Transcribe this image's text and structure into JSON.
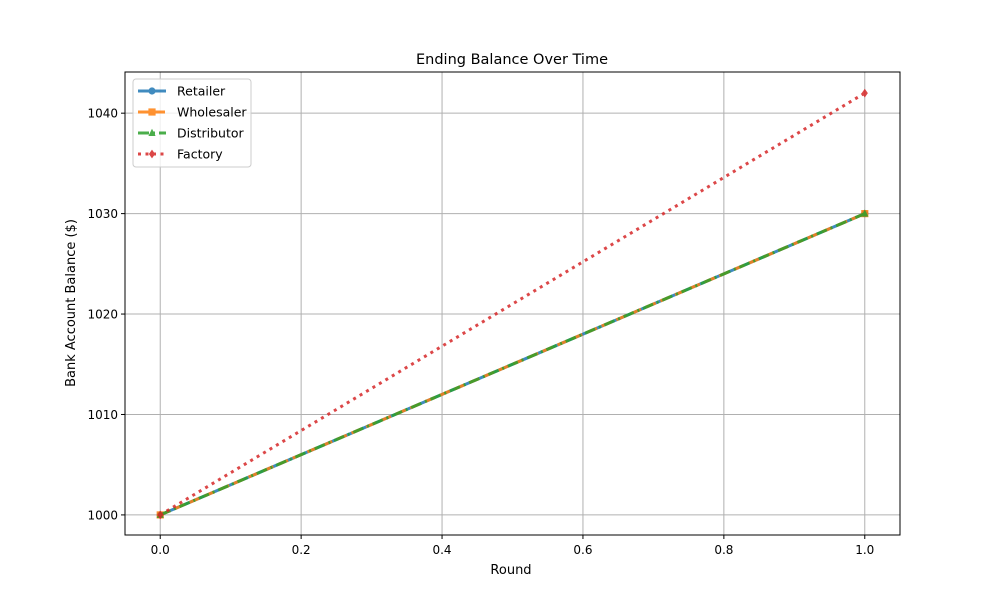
{
  "chart_data": {
    "type": "line",
    "title": "Ending Balance Over Time",
    "xlabel": "Round",
    "ylabel": "Bank Account Balance ($)",
    "xlim": [
      -0.05,
      1.05
    ],
    "ylim": [
      998.0,
      1044.1
    ],
    "x_ticks": [
      0.0,
      0.2,
      0.4,
      0.6,
      0.8,
      1.0
    ],
    "x_tick_labels": [
      "0.0",
      "0.2",
      "0.4",
      "0.6",
      "0.8",
      "1.0"
    ],
    "y_ticks": [
      1000,
      1010,
      1020,
      1030,
      1040
    ],
    "y_tick_labels": [
      "1000",
      "1010",
      "1020",
      "1030",
      "1040"
    ],
    "grid": true,
    "legend_position": "upper-left",
    "series": [
      {
        "name": "Retailer",
        "x": [
          0,
          1
        ],
        "y": [
          1000,
          1030
        ],
        "color": "#1f77b4",
        "line_style": "solid",
        "marker": "circle"
      },
      {
        "name": "Wholesaler",
        "x": [
          0,
          1
        ],
        "y": [
          1000,
          1030
        ],
        "color": "#ff7f0e",
        "line_style": "dashed",
        "marker": "square"
      },
      {
        "name": "Distributor",
        "x": [
          0,
          1
        ],
        "y": [
          1000,
          1030
        ],
        "color": "#2ca02c",
        "line_style": "dashdot",
        "marker": "triangle"
      },
      {
        "name": "Factory",
        "x": [
          0,
          1
        ],
        "y": [
          1000,
          1042
        ],
        "color": "#d62728",
        "line_style": "dotted",
        "marker": "diamond"
      }
    ]
  }
}
